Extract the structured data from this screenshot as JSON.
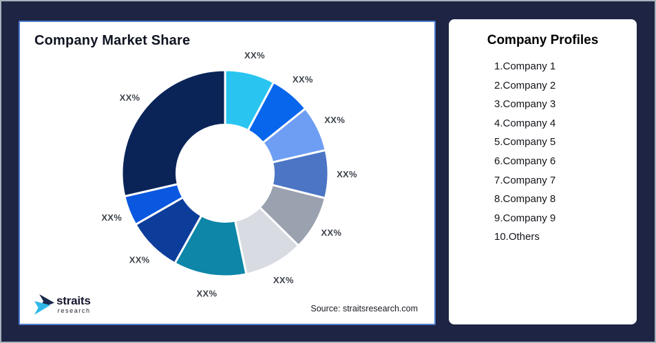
{
  "page": {
    "background": "#1E2443",
    "outer_border_color": "#ABB1BB"
  },
  "chart_card": {
    "title": "Company Market Share",
    "border_color": "#4E7CD1",
    "source": "Source: straitsresearch.com",
    "logo": {
      "brand": "straits",
      "sub": "research",
      "icon": "straits-arrow-mark",
      "icon_colors": {
        "top": "#1B2A4E",
        "bottom": "#2EB9EA"
      }
    }
  },
  "chart_data": {
    "type": "pie",
    "variant": "donut",
    "title": "Company Market Share",
    "categories": [
      "Company 1",
      "Company 2",
      "Company 3",
      "Company 4",
      "Company 5",
      "Company 6",
      "Company 7",
      "Company 8",
      "Company 9",
      "Others"
    ],
    "values": [
      7.8,
      6.4,
      7.2,
      7.5,
      8.5,
      9.3,
      11.4,
      8.6,
      4.7,
      28.6
    ],
    "display_labels": [
      "XX%",
      "XX%",
      "XX%",
      "XX%",
      "XX%",
      "XX%",
      "XX%",
      "XX%",
      "XX%",
      "XX%"
    ],
    "colors": [
      "#29C5F0",
      "#0766EC",
      "#6D9EF3",
      "#4C75C5",
      "#9AA1AF",
      "#D8DBE2",
      "#0D86A8",
      "#0D3D9B",
      "#0A58E0",
      "#0A2458"
    ],
    "start_angle_deg": 0,
    "direction": "clockwise",
    "inner_radius_ratio": 0.47,
    "slice_gap_color": "#FFFFFF",
    "label_color": "#3E434B",
    "legend": "none"
  },
  "profiles_card": {
    "title": "Company Profiles",
    "items": [
      "1.Company 1",
      "2.Company 2",
      "3.Company 3",
      "4.Company 4",
      "5.Company 5",
      "6.Company 6",
      "7.Company 7",
      "8.Company 8",
      "9.Company 9",
      "10.Others"
    ]
  }
}
